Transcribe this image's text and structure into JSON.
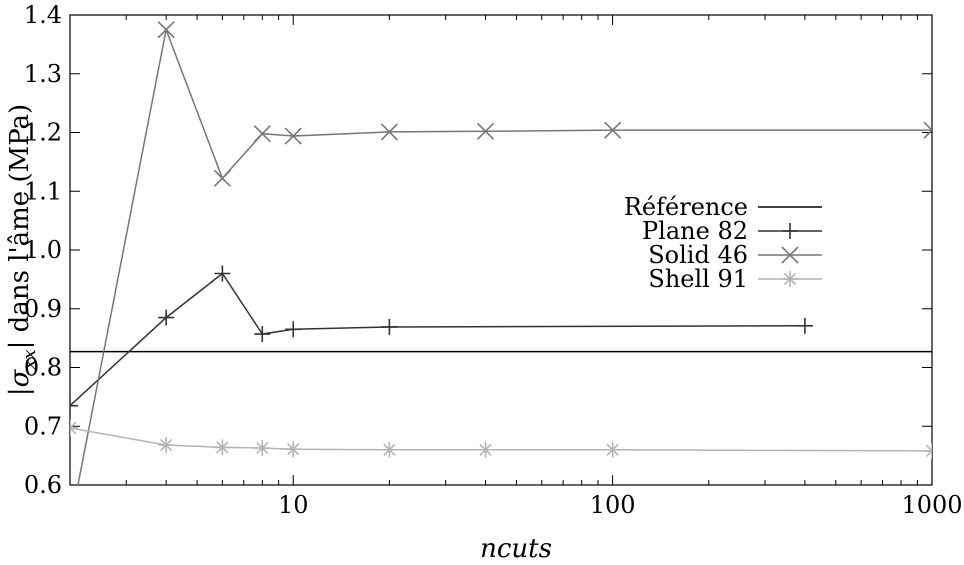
{
  "chart_data": {
    "type": "line",
    "xscale": "log",
    "xlim": [
      2,
      1000
    ],
    "ylim": [
      0.6,
      1.4
    ],
    "xlabel": "ncuts",
    "ylabel": "|σxx| dans l'âme (MPa)",
    "ylabel_parts": {
      "pre": "|",
      "sigma": "σ",
      "sub": "xx",
      "post": "| dans l'âme (MPa)"
    },
    "x_ticks": [
      "10",
      "100",
      "1000"
    ],
    "y_ticks": [
      "0.6",
      "0.7",
      "0.8",
      "0.9",
      "1.0",
      "1.1",
      "1.2",
      "1.3",
      "1.4"
    ],
    "grid": false,
    "legend_position": "right",
    "series": [
      {
        "name": "Référence",
        "color": "#000000",
        "marker": "none",
        "x": [
          2,
          1000
        ],
        "y": [
          0.827,
          0.827
        ]
      },
      {
        "name": "Plane 82",
        "color": "#333333",
        "marker": "plus",
        "x": [
          2,
          4,
          6,
          8,
          10,
          20,
          400
        ],
        "y": [
          0.735,
          0.885,
          0.96,
          0.857,
          0.865,
          0.869,
          0.871
        ]
      },
      {
        "name": "Solid 46",
        "color": "#777777",
        "marker": "cross",
        "x": [
          2,
          4,
          6,
          8,
          10,
          20,
          40,
          100,
          1000
        ],
        "y": [
          0.53,
          1.375,
          1.122,
          1.198,
          1.194,
          1.201,
          1.202,
          1.204,
          1.204
        ]
      },
      {
        "name": "Shell 91",
        "color": "#b4b4b4",
        "marker": "star",
        "x": [
          2,
          4,
          6,
          8,
          10,
          20,
          40,
          100,
          1000
        ],
        "y": [
          0.697,
          0.668,
          0.664,
          0.663,
          0.661,
          0.66,
          0.66,
          0.66,
          0.658
        ]
      }
    ]
  }
}
